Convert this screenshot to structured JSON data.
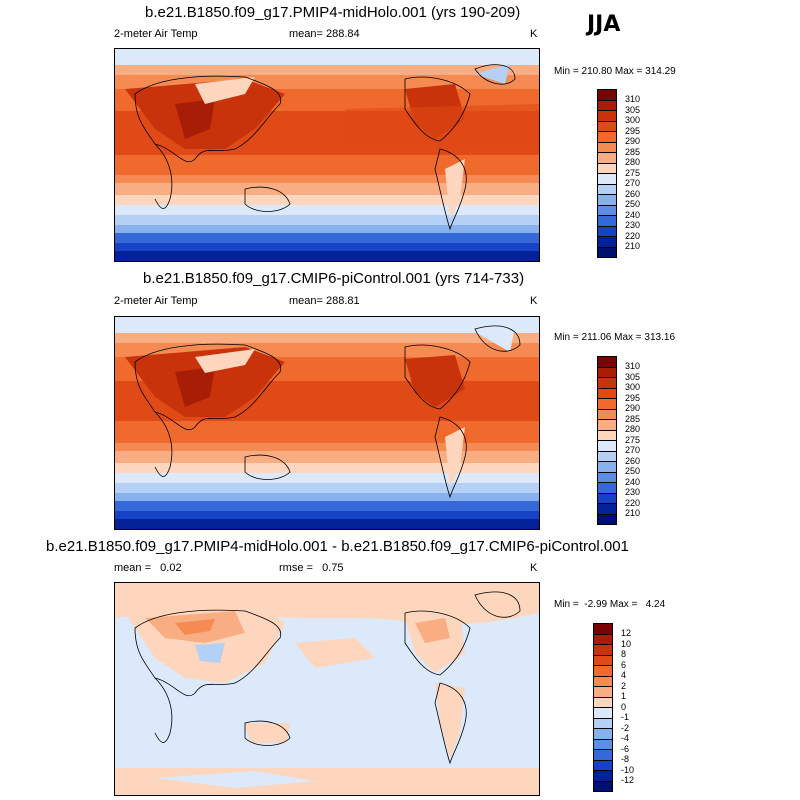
{
  "season": "JJA",
  "panels": [
    {
      "title": "b.e21.B1850.f09_g17.PMIP4-midHolo.001 (yrs 190-209)",
      "left_label": "2-meter Air Temp",
      "center_label": "mean= 288.84",
      "unit": "K",
      "minmax": "Min = 210.80 Max = 314.29",
      "levels": [
        "310",
        "305",
        "300",
        "295",
        "290",
        "285",
        "280",
        "275",
        "270",
        "260",
        "250",
        "240",
        "230",
        "220",
        "210"
      ]
    },
    {
      "title": "b.e21.B1850.f09_g17.CMIP6-piControl.001 (yrs 714-733)",
      "left_label": "2-meter Air Temp",
      "center_label": "mean= 288.81",
      "unit": "K",
      "minmax": "Min = 211.06 Max = 313.16",
      "levels": [
        "310",
        "305",
        "300",
        "295",
        "290",
        "285",
        "280",
        "275",
        "270",
        "260",
        "250",
        "240",
        "230",
        "220",
        "210"
      ]
    },
    {
      "title": "b.e21.B1850.f09_g17.PMIP4-midHolo.001 - b.e21.B1850.f09_g17.CMIP6-piControl.001",
      "left_label": "mean =   0.02",
      "center_label": "rmse =   0.75",
      "unit": "K",
      "minmax": "Min =  -2.99 Max =   4.24",
      "levels": [
        "12",
        "10",
        "8",
        "6",
        "4",
        "2",
        "1",
        "0",
        "-1",
        "-2",
        "-4",
        "-6",
        "-8",
        "-10",
        "-12"
      ]
    }
  ],
  "colors": {
    "scale": [
      "#7a0403",
      "#a81d06",
      "#c9330c",
      "#e04a16",
      "#ef6a2c",
      "#f58a52",
      "#f9ad82",
      "#fdd6bd",
      "#dbe9fb",
      "#b4d0f5",
      "#88b2ee",
      "#5b8ee4",
      "#3568d8",
      "#1642c6",
      "#03229a",
      "#001070"
    ]
  }
}
